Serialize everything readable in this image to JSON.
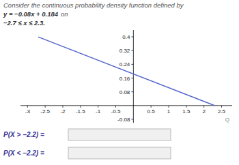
{
  "chart_data": {
    "type": "line",
    "title": "Consider the continuous probability density function defined by",
    "annotations": [
      "y = −0.08x + 0.184",
      "on",
      "−2.7 ≤ x ≤ 2.3.",
      "P(X > −2.2) =",
      "P(X < −2.2) =",
      "Q"
    ],
    "x": [
      -2.7,
      2.3
    ],
    "values": [
      0.4,
      0
    ],
    "color": "#5566cc",
    "xlim": [
      -3.2,
      2.8
    ],
    "ylim": [
      -0.1,
      0.44
    ],
    "xticks": [
      -3,
      -2.5,
      -2,
      -1.5,
      -1,
      -0.5,
      0.5,
      1,
      1.5,
      2,
      2.5
    ],
    "yticks": [
      -0.08,
      0.08,
      0.16,
      0.24,
      0.32,
      0.4
    ],
    "grid": false
  }
}
